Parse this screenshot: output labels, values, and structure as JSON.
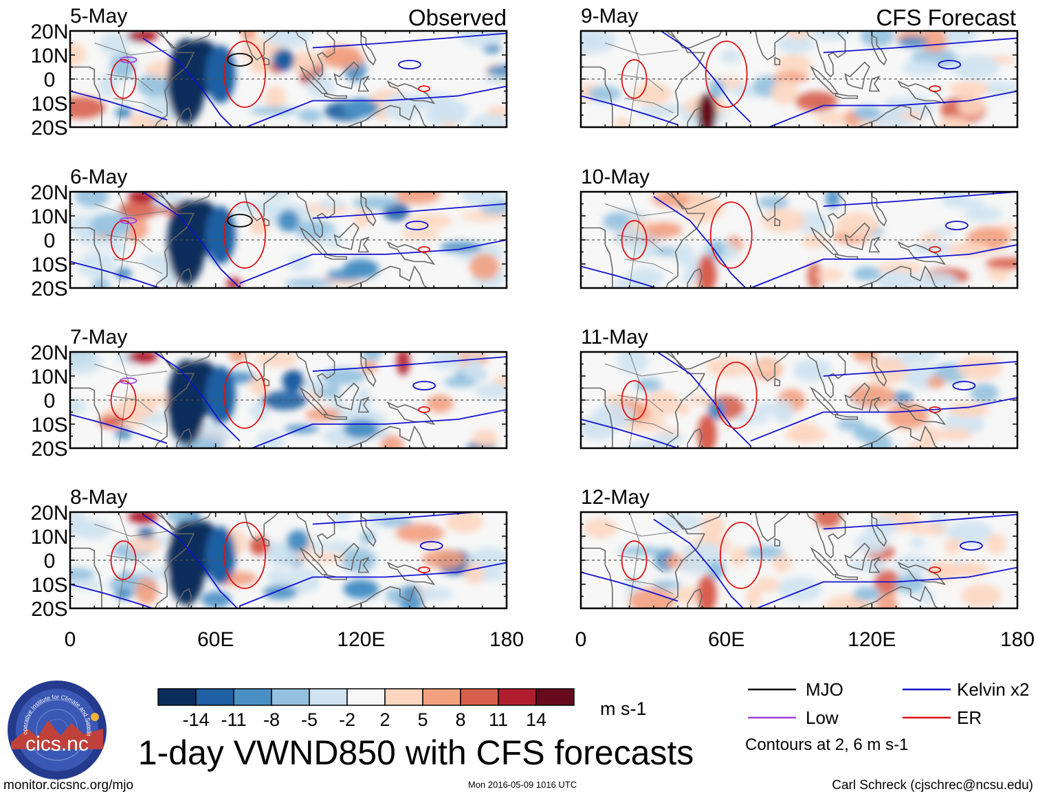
{
  "header": {
    "left_label": "Observed",
    "right_label": "CFS Forecast"
  },
  "chart_data": {
    "type": "heatmap",
    "title": "1-day VWND850 with CFS forecasts",
    "variable": "850-hPa meridional wind anomaly",
    "units": "m s-1",
    "xlim": [
      0,
      180
    ],
    "ylim": [
      -20,
      20
    ],
    "x_ticks": [
      {
        "value": 0,
        "label": "0"
      },
      {
        "value": 60,
        "label": "60E"
      },
      {
        "value": 120,
        "label": "120E"
      },
      {
        "value": 180,
        "label": "180"
      }
    ],
    "y_ticks": [
      {
        "value": 20,
        "label": "20N"
      },
      {
        "value": 10,
        "label": "10N"
      },
      {
        "value": 0,
        "label": "0"
      },
      {
        "value": -10,
        "label": "10S"
      },
      {
        "value": -20,
        "label": "20S"
      }
    ],
    "observed_panels": [
      "5-May",
      "6-May",
      "7-May",
      "8-May"
    ],
    "forecast_panels": [
      "9-May",
      "10-May",
      "11-May",
      "12-May"
    ],
    "colorbar": {
      "ticks": [
        "-14",
        "-11",
        "-8",
        "-5",
        "-2",
        "2",
        "5",
        "8",
        "11",
        "14"
      ],
      "colors": [
        "#0b2d5c",
        "#1f5fa3",
        "#4a90c5",
        "#93c1df",
        "#cfe3f1",
        "#f7f7f7",
        "#fdd6c0",
        "#f3a07f",
        "#d85f4e",
        "#b01d2f",
        "#680a1e"
      ],
      "units_label": "m s-1"
    },
    "legend": [
      {
        "label": "MJO",
        "color": "#000000"
      },
      {
        "label": "Kelvin x2",
        "color": "#1010d0"
      },
      {
        "label": "Low",
        "color": "#9b3fe0"
      },
      {
        "label": "ER",
        "color": "#e01010"
      }
    ],
    "contour_note": "Contours at 2, 6 m s-1"
  },
  "footer": {
    "url": "monitor.cicsnc.org/mjo",
    "timestamp": "Mon 2016-05-09 1016 UTC",
    "author": "Carl Schreck (cjschrec@ncsu.edu)",
    "logo_text": "cics.nc",
    "logo_ring_text": "Cooperative Institute for Climate and Satellites"
  }
}
